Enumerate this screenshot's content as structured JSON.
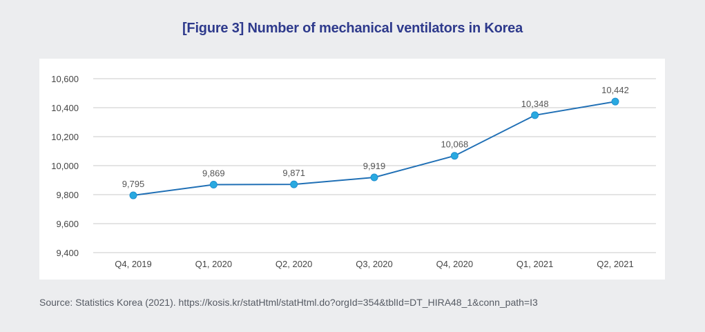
{
  "title": "[Figure 3] Number of mechanical ventilators in Korea",
  "source": "Source: Statistics Korea (2021). https://kosis.kr/statHtml/statHtml.do?orgId=354&tblId=DT_HIRA48_1&conn_path=I3",
  "colors": {
    "title": "#2e3a8c",
    "line": "#1f6fb5",
    "marker": "#29a9e0",
    "grid": "#c8c8c8",
    "text": "#444444"
  },
  "chart_data": {
    "type": "line",
    "categories": [
      "Q4, 2019",
      "Q1, 2020",
      "Q2, 2020",
      "Q3, 2020",
      "Q4, 2020",
      "Q1, 2021",
      "Q2, 2021"
    ],
    "series": [
      {
        "values": [
          9795,
          9869,
          9871,
          9919,
          10068,
          10348,
          10442
        ],
        "labels": [
          "9,795",
          "9,869",
          "9,871",
          "9,919",
          "10,068",
          "10,348",
          "10,442"
        ]
      }
    ],
    "yticks": [
      9400,
      9600,
      9800,
      10000,
      10200,
      10400,
      10600
    ],
    "ytick_labels": [
      "9,400",
      "9,600",
      "9,800",
      "10,000",
      "10,200",
      "10,400",
      "10,600"
    ],
    "ylim": [
      9400,
      10600
    ],
    "grid": true,
    "xlabel": "",
    "ylabel": ""
  }
}
